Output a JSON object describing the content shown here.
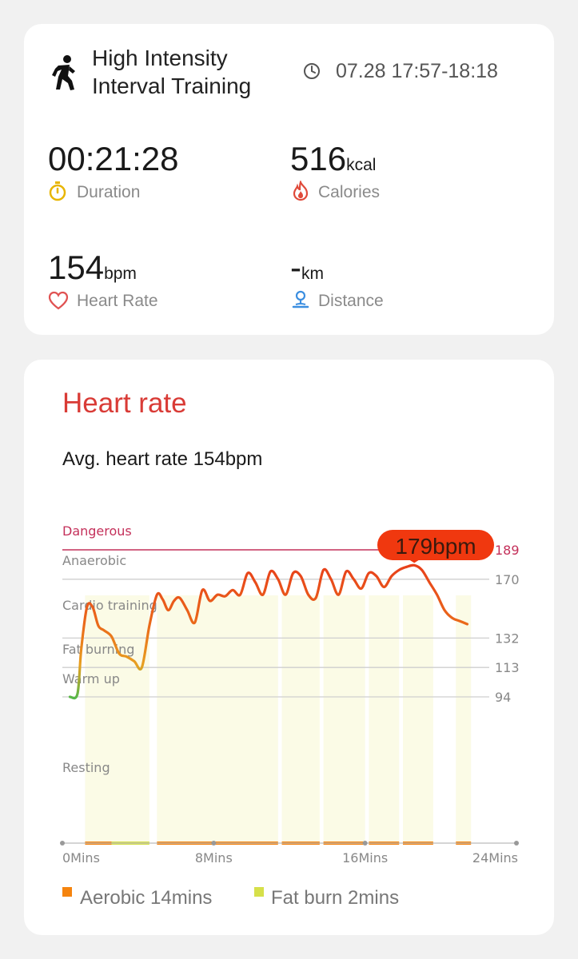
{
  "workout": {
    "title_line1": "High Intensity",
    "title_line2": "Interval Training",
    "time_range": "07.28 17:57-18:18"
  },
  "metrics": {
    "duration": {
      "value": "00:21:28",
      "unit": "",
      "label": "Duration"
    },
    "calories": {
      "value": "516",
      "unit": "kcal",
      "label": "Calories"
    },
    "heart_rate": {
      "value": "154",
      "unit": "bpm",
      "label": "Heart Rate"
    },
    "distance": {
      "value": "-",
      "unit": "km",
      "label": "Distance"
    }
  },
  "heart_rate_card": {
    "title": "Heart rate",
    "avg_text": "Avg. heart rate 154bpm",
    "max_badge": "179bpm"
  },
  "colors": {
    "accent_red": "#d93b36",
    "aerobic": "#f5840e",
    "fat_burn": "#d6e04a",
    "dangerous": "#c4305a"
  },
  "chart_data": {
    "type": "line",
    "title": "",
    "xlabel": "",
    "ylabel": "",
    "x_unit": "Mins",
    "xlim": [
      0,
      24
    ],
    "ylim": [
      40,
      200
    ],
    "x_ticks": [
      {
        "value": 0,
        "label": "0Mins"
      },
      {
        "value": 8,
        "label": "8Mins"
      },
      {
        "value": 16,
        "label": "16Mins"
      },
      {
        "value": 24,
        "label": "24Mins"
      }
    ],
    "zones": [
      {
        "name": "Dangerous",
        "threshold": 189,
        "tick_label": "189"
      },
      {
        "name": "Anaerobic",
        "threshold": 170,
        "tick_label": "170"
      },
      {
        "name": "Cardio training",
        "threshold": 132,
        "tick_label": "132"
      },
      {
        "name": "Fat burning",
        "threshold": 113,
        "tick_label": "113"
      },
      {
        "name": "Warm up",
        "threshold": 94,
        "tick_label": "94"
      },
      {
        "name": "Resting",
        "threshold": null,
        "tick_label": ""
      }
    ],
    "max_label": "179bpm",
    "series": [
      {
        "x": [
          0.4,
          0.8,
          1.0,
          1.3,
          1.6,
          1.9,
          2.2,
          2.6,
          3.0,
          3.4,
          3.8,
          4.2,
          4.6,
          5.0,
          5.3,
          5.6,
          5.9,
          6.2,
          6.6,
          7.0,
          7.4,
          7.8,
          8.2,
          8.6,
          9.0,
          9.4,
          9.8,
          10.2,
          10.6,
          11.0,
          11.4,
          11.8,
          12.2,
          12.6,
          13.0,
          13.4,
          13.8,
          14.2,
          14.6,
          15.0,
          15.4,
          15.8,
          16.2,
          16.6,
          17.0,
          17.4,
          17.8,
          18.2,
          18.6,
          19.0,
          19.4,
          19.8,
          20.2,
          20.6,
          21.0,
          21.4
        ],
        "values": [
          94,
          96,
          125,
          152,
          152,
          140,
          137,
          133,
          122,
          120,
          117,
          113,
          140,
          160,
          157,
          150,
          156,
          158,
          150,
          142,
          163,
          156,
          160,
          159,
          163,
          160,
          174,
          168,
          160,
          175,
          170,
          160,
          174,
          172,
          160,
          158,
          176,
          170,
          160,
          175,
          170,
          164,
          174,
          172,
          165,
          172,
          176,
          178,
          179,
          176,
          168,
          160,
          150,
          145,
          143,
          141
        ]
      }
    ],
    "intervals": [
      {
        "zone": "aerobic",
        "start": 1.2,
        "end": 2.6
      },
      {
        "zone": "fat_burn",
        "start": 2.6,
        "end": 4.6
      },
      {
        "zone": "aerobic",
        "start": 5.0,
        "end": 11.4
      },
      {
        "zone": "aerobic",
        "start": 11.6,
        "end": 13.6
      },
      {
        "zone": "aerobic",
        "start": 13.8,
        "end": 16.0
      },
      {
        "zone": "aerobic",
        "start": 16.2,
        "end": 17.8
      },
      {
        "zone": "aerobic",
        "start": 18.0,
        "end": 19.6
      },
      {
        "zone": "aerobic",
        "start": 20.8,
        "end": 21.6
      }
    ]
  },
  "legend": [
    {
      "label": "Aerobic 14mins",
      "color": "#f5840e"
    },
    {
      "label": "Fat burn 2mins",
      "color": "#d6e04a"
    }
  ]
}
